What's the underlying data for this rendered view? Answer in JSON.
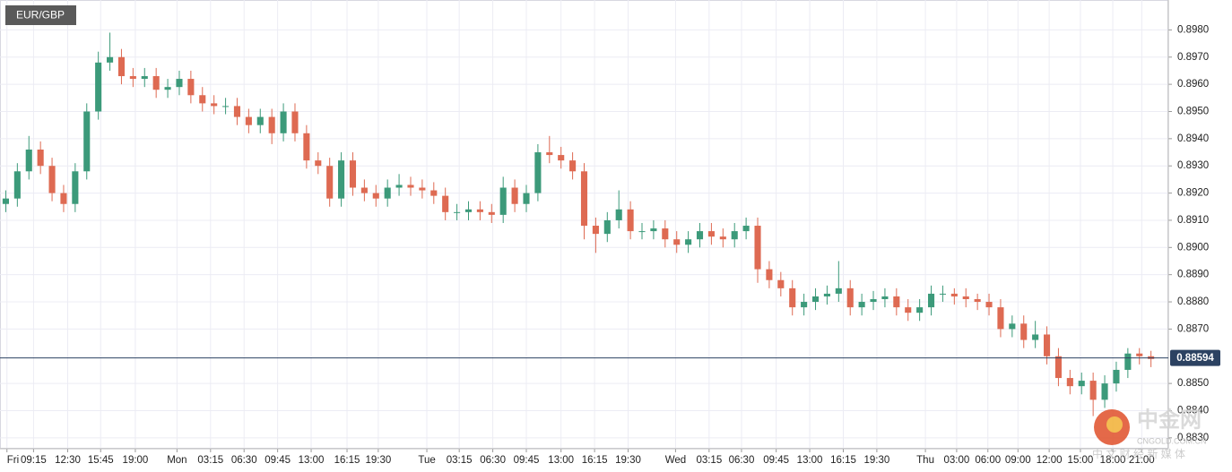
{
  "chart_data": {
    "type": "candlestick",
    "title": "EUR/GBP",
    "up_color": "#3c9a7a",
    "down_color": "#de6a52",
    "grid": true,
    "xlim": [
      -0.5,
      100.5
    ],
    "xticks": [
      {
        "value": 0.1,
        "label": "Fri"
      },
      {
        "value": 2.4,
        "label": "09:15"
      },
      {
        "value": 5.35,
        "label": "12:30"
      },
      {
        "value": 8.2,
        "label": "15:45"
      },
      {
        "value": 11.2,
        "label": "19:00"
      },
      {
        "value": 14.8,
        "label": "Mon"
      },
      {
        "value": 17.7,
        "label": "03:15"
      },
      {
        "value": 20.6,
        "label": "06:30"
      },
      {
        "value": 23.5,
        "label": "09:45"
      },
      {
        "value": 26.4,
        "label": "13:00"
      },
      {
        "value": 29.5,
        "label": "16:15"
      },
      {
        "value": 32.2,
        "label": "19:30"
      },
      {
        "value": 36.4,
        "label": "Tue"
      },
      {
        "value": 39.2,
        "label": "03:15"
      },
      {
        "value": 42.1,
        "label": "06:30"
      },
      {
        "value": 45,
        "label": "09:45"
      },
      {
        "value": 48,
        "label": "13:00"
      },
      {
        "value": 50.9,
        "label": "16:15"
      },
      {
        "value": 53.8,
        "label": "19:30"
      },
      {
        "value": 57.9,
        "label": "Wed"
      },
      {
        "value": 60.8,
        "label": "03:15"
      },
      {
        "value": 63.6,
        "label": "06:30"
      },
      {
        "value": 66.6,
        "label": "09:45"
      },
      {
        "value": 69.5,
        "label": "13:00"
      },
      {
        "value": 72.4,
        "label": "16:15"
      },
      {
        "value": 75.3,
        "label": "19:30"
      },
      {
        "value": 79.5,
        "label": "Thu"
      },
      {
        "value": 82.2,
        "label": "03:00"
      },
      {
        "value": 84.9,
        "label": "06:00"
      },
      {
        "value": 87.5,
        "label": "09:00"
      },
      {
        "value": 90.2,
        "label": "12:00"
      },
      {
        "value": 92.9,
        "label": "15:00"
      },
      {
        "value": 95.7,
        "label": "18:00"
      },
      {
        "value": 98.2,
        "label": "21:00"
      }
    ],
    "ylim": [
      0.8826,
      0.8991
    ],
    "yticks": [
      {
        "value": 0.883,
        "label": "0.8830"
      },
      {
        "value": 0.884,
        "label": "0.8840"
      },
      {
        "value": 0.885,
        "label": "0.8850"
      },
      {
        "value": 0.887,
        "label": "0.8870"
      },
      {
        "value": 0.888,
        "label": "0.8880"
      },
      {
        "value": 0.889,
        "label": "0.8890"
      },
      {
        "value": 0.89,
        "label": "0.8900"
      },
      {
        "value": 0.891,
        "label": "0.8910"
      },
      {
        "value": 0.892,
        "label": "0.8920"
      },
      {
        "value": 0.893,
        "label": "0.8930"
      },
      {
        "value": 0.894,
        "label": "0.8940"
      },
      {
        "value": 0.895,
        "label": "0.8950"
      },
      {
        "value": 0.896,
        "label": "0.8960"
      },
      {
        "value": 0.897,
        "label": "0.8970"
      },
      {
        "value": 0.898,
        "label": "0.8980"
      }
    ],
    "last_price": 0.88594,
    "open": [
      0.8916,
      0.8918,
      0.8928,
      0.8936,
      0.893,
      0.892,
      0.8916,
      0.8928,
      0.895,
      0.8968,
      0.897,
      0.8963,
      0.8962,
      0.8963,
      0.8958,
      0.8959,
      0.8962,
      0.8956,
      0.8953,
      0.8952,
      0.8952,
      0.8948,
      0.8945,
      0.8948,
      0.8942,
      0.895,
      0.8942,
      0.8932,
      0.893,
      0.8918,
      0.8932,
      0.8922,
      0.892,
      0.8918,
      0.8922,
      0.8923,
      0.8922,
      0.8921,
      0.8919,
      0.8913,
      0.8913,
      0.8914,
      0.8913,
      0.8912,
      0.8922,
      0.8916,
      0.892,
      0.8935,
      0.8934,
      0.8932,
      0.8928,
      0.8908,
      0.8905,
      0.891,
      0.8914,
      0.8906,
      0.8906,
      0.8907,
      0.8903,
      0.8901,
      0.8903,
      0.8906,
      0.8904,
      0.8903,
      0.8906,
      0.8908,
      0.8892,
      0.8888,
      0.8885,
      0.8878,
      0.888,
      0.8882,
      0.8883,
      0.8885,
      0.8878,
      0.888,
      0.8881,
      0.8882,
      0.8878,
      0.8876,
      0.8878,
      0.8883,
      0.8883,
      0.8882,
      0.8881,
      0.888,
      0.8878,
      0.887,
      0.8872,
      0.8866,
      0.8868,
      0.886,
      0.8852,
      0.8849,
      0.8851,
      0.8844,
      0.885,
      0.8855,
      0.8861,
      0.886
    ],
    "high": [
      0.8921,
      0.8931,
      0.8941,
      0.8939,
      0.8933,
      0.8923,
      0.8931,
      0.8953,
      0.8972,
      0.8979,
      0.8973,
      0.8966,
      0.8966,
      0.8966,
      0.8962,
      0.8965,
      0.8965,
      0.8959,
      0.8956,
      0.8955,
      0.8955,
      0.8951,
      0.8951,
      0.8951,
      0.8953,
      0.8953,
      0.8945,
      0.8935,
      0.8933,
      0.8935,
      0.8935,
      0.8925,
      0.8923,
      0.8925,
      0.8927,
      0.8926,
      0.8925,
      0.8924,
      0.8922,
      0.8916,
      0.8917,
      0.8917,
      0.8916,
      0.8926,
      0.8925,
      0.8923,
      0.8938,
      0.8941,
      0.8937,
      0.8935,
      0.8931,
      0.8911,
      0.8913,
      0.8921,
      0.8917,
      0.8909,
      0.891,
      0.891,
      0.8906,
      0.8906,
      0.8909,
      0.8909,
      0.8907,
      0.8909,
      0.8911,
      0.8911,
      0.8895,
      0.8891,
      0.8888,
      0.8883,
      0.8885,
      0.8886,
      0.8895,
      0.8888,
      0.8883,
      0.8884,
      0.8885,
      0.8885,
      0.8881,
      0.8881,
      0.8886,
      0.8886,
      0.8885,
      0.8885,
      0.8883,
      0.8883,
      0.8881,
      0.8875,
      0.8875,
      0.8873,
      0.8871,
      0.8863,
      0.8855,
      0.8854,
      0.8854,
      0.8853,
      0.8858,
      0.8863,
      0.8863,
      0.8862
    ],
    "low": [
      0.8913,
      0.8915,
      0.8925,
      0.8927,
      0.8917,
      0.8913,
      0.8913,
      0.8925,
      0.8947,
      0.8965,
      0.896,
      0.8959,
      0.8959,
      0.8955,
      0.8955,
      0.8956,
      0.8953,
      0.895,
      0.8949,
      0.8949,
      0.8945,
      0.8942,
      0.8942,
      0.8938,
      0.8939,
      0.8939,
      0.8929,
      0.8927,
      0.8915,
      0.8915,
      0.8919,
      0.8917,
      0.8915,
      0.8915,
      0.8919,
      0.8919,
      0.8918,
      0.8916,
      0.891,
      0.891,
      0.891,
      0.891,
      0.8909,
      0.8909,
      0.8913,
      0.8913,
      0.8917,
      0.8931,
      0.8929,
      0.8925,
      0.8903,
      0.8898,
      0.8902,
      0.8907,
      0.8903,
      0.8903,
      0.8903,
      0.89,
      0.8898,
      0.8898,
      0.89,
      0.8901,
      0.89,
      0.89,
      0.8903,
      0.8887,
      0.8885,
      0.8882,
      0.8875,
      0.8875,
      0.8877,
      0.8879,
      0.888,
      0.8875,
      0.8875,
      0.8877,
      0.8878,
      0.8875,
      0.8873,
      0.8873,
      0.8875,
      0.888,
      0.8879,
      0.8878,
      0.8877,
      0.8875,
      0.8867,
      0.8867,
      0.8863,
      0.8863,
      0.8857,
      0.8849,
      0.8846,
      0.8846,
      0.8838,
      0.8841,
      0.8847,
      0.8852,
      0.8857,
      0.8856
    ],
    "close": [
      0.8918,
      0.8928,
      0.8936,
      0.893,
      0.892,
      0.8916,
      0.8928,
      0.895,
      0.8968,
      0.897,
      0.8963,
      0.8962,
      0.8963,
      0.8958,
      0.8959,
      0.8962,
      0.8956,
      0.8953,
      0.8952,
      0.8952,
      0.8948,
      0.8945,
      0.8948,
      0.8942,
      0.895,
      0.8942,
      0.8932,
      0.893,
      0.8918,
      0.8932,
      0.8922,
      0.892,
      0.8918,
      0.8922,
      0.8923,
      0.8922,
      0.8921,
      0.8919,
      0.8913,
      0.8913,
      0.8914,
      0.8913,
      0.8912,
      0.8922,
      0.8916,
      0.892,
      0.8935,
      0.8934,
      0.8932,
      0.8928,
      0.8908,
      0.8905,
      0.891,
      0.8914,
      0.8906,
      0.8906,
      0.8907,
      0.8903,
      0.8901,
      0.8903,
      0.8906,
      0.8904,
      0.8903,
      0.8906,
      0.8908,
      0.8892,
      0.8888,
      0.8885,
      0.8878,
      0.888,
      0.8882,
      0.8883,
      0.8885,
      0.8878,
      0.888,
      0.8881,
      0.8882,
      0.8878,
      0.8876,
      0.8878,
      0.8883,
      0.8883,
      0.8882,
      0.8881,
      0.888,
      0.8878,
      0.887,
      0.8872,
      0.8866,
      0.8868,
      0.886,
      0.8852,
      0.8849,
      0.8851,
      0.8844,
      0.885,
      0.8855,
      0.8861,
      0.886,
      0.8859
    ]
  },
  "watermark": {
    "brand": "中金网",
    "site": "CNGOLD.COM.CN",
    "slogan": "中 文 财 经 新 媒 体"
  }
}
